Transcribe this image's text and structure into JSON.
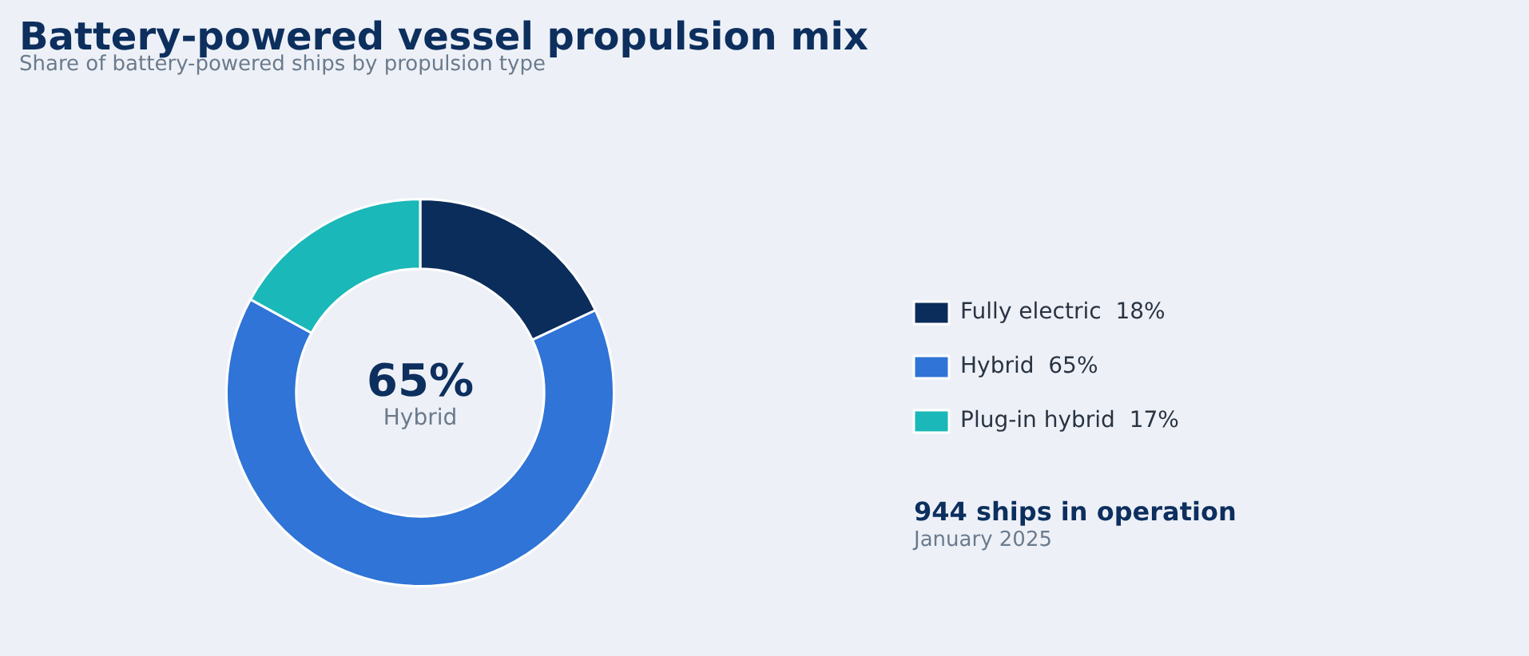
{
  "chart_data": {
    "type": "donut",
    "title": "Battery-powered vessel propulsion mix",
    "subtitle": "Share of battery-powered ships by propulsion type",
    "categories": [
      "Fully electric  18%",
      "Hybrid  65%",
      "Plug-in hybrid  17%"
    ],
    "values": [
      18,
      65,
      17
    ],
    "colors": [
      "#0b2d5b",
      "#2f74d6",
      "#1ab8b8"
    ],
    "legend": "right",
    "annotations": [
      "65%",
      "Hybrid",
      "944 ships in operation",
      "January 2025"
    ]
  }
}
